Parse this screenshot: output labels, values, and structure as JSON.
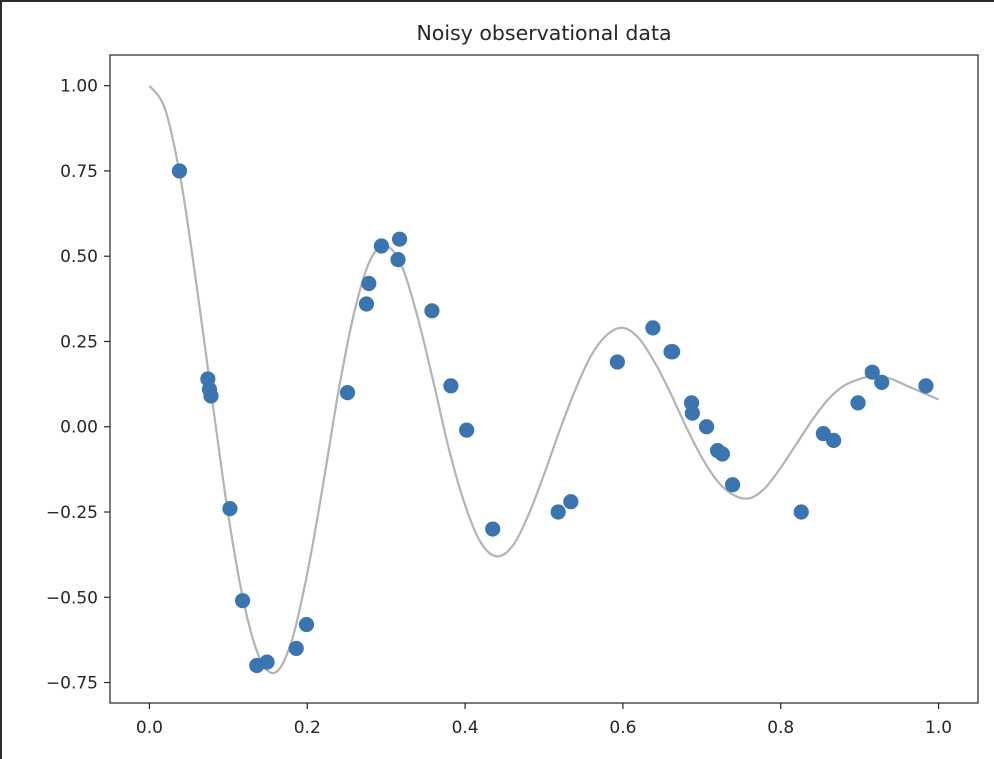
{
  "chart_data": {
    "type": "scatter",
    "title": "Noisy observational data",
    "xlabel": "",
    "ylabel": "",
    "xlim": [
      -0.05,
      1.05
    ],
    "ylim": [
      -0.81,
      1.09
    ],
    "grid": false,
    "x_ticks": [
      0.0,
      0.2,
      0.4,
      0.6,
      0.8,
      1.0
    ],
    "x_tick_labels": [
      "0.0",
      "0.2",
      "0.4",
      "0.6",
      "0.8",
      "1.0"
    ],
    "y_ticks": [
      1.0,
      0.75,
      0.5,
      0.25,
      0.0,
      -0.25,
      -0.5,
      -0.75
    ],
    "y_tick_labels": [
      "1.00",
      "0.75",
      "0.50",
      "0.25",
      "0.00",
      "−0.25",
      "−0.50",
      "−0.75"
    ],
    "points_color": "#3a75b0",
    "curve_color": "#b3b3b3",
    "curve": {
      "x": [
        0.0,
        0.02,
        0.04,
        0.06,
        0.08,
        0.1,
        0.12,
        0.14,
        0.16,
        0.18,
        0.2,
        0.22,
        0.24,
        0.26,
        0.28,
        0.3,
        0.32,
        0.34,
        0.36,
        0.38,
        0.4,
        0.42,
        0.44,
        0.46,
        0.48,
        0.5,
        0.52,
        0.54,
        0.56,
        0.58,
        0.6,
        0.62,
        0.64,
        0.66,
        0.68,
        0.7,
        0.72,
        0.74,
        0.76,
        0.78,
        0.8,
        0.82,
        0.84,
        0.86,
        0.88,
        0.9,
        0.92,
        0.94,
        0.96,
        0.98,
        1.0
      ],
      "y": [
        1.0,
        0.93,
        0.72,
        0.41,
        0.07,
        -0.26,
        -0.52,
        -0.68,
        -0.72,
        -0.63,
        -0.43,
        -0.17,
        0.11,
        0.34,
        0.49,
        0.53,
        0.47,
        0.32,
        0.13,
        -0.07,
        -0.23,
        -0.34,
        -0.38,
        -0.35,
        -0.26,
        -0.14,
        -0.01,
        0.11,
        0.21,
        0.27,
        0.29,
        0.26,
        0.19,
        0.1,
        0.0,
        -0.09,
        -0.16,
        -0.2,
        -0.21,
        -0.18,
        -0.12,
        -0.05,
        0.02,
        0.08,
        0.12,
        0.14,
        0.15,
        0.14,
        0.12,
        0.1,
        0.08
      ]
    },
    "points": {
      "x": [
        0.038,
        0.074,
        0.076,
        0.078,
        0.102,
        0.118,
        0.136,
        0.149,
        0.186,
        0.199,
        0.251,
        0.275,
        0.278,
        0.294,
        0.315,
        0.317,
        0.358,
        0.382,
        0.402,
        0.435,
        0.518,
        0.534,
        0.593,
        0.638,
        0.661,
        0.663,
        0.687,
        0.688,
        0.706,
        0.72,
        0.726,
        0.739,
        0.826,
        0.854,
        0.867,
        0.898,
        0.916,
        0.928,
        0.984
      ],
      "y": [
        0.75,
        0.14,
        0.11,
        0.09,
        -0.24,
        -0.51,
        -0.7,
        -0.69,
        -0.65,
        -0.58,
        0.1,
        0.36,
        0.42,
        0.53,
        0.49,
        0.55,
        0.34,
        0.12,
        -0.01,
        -0.3,
        -0.25,
        -0.22,
        0.19,
        0.29,
        0.22,
        0.22,
        0.07,
        0.04,
        0.0,
        -0.07,
        -0.08,
        -0.17,
        -0.25,
        -0.02,
        -0.04,
        0.07,
        0.16,
        0.13,
        0.12
      ]
    }
  }
}
